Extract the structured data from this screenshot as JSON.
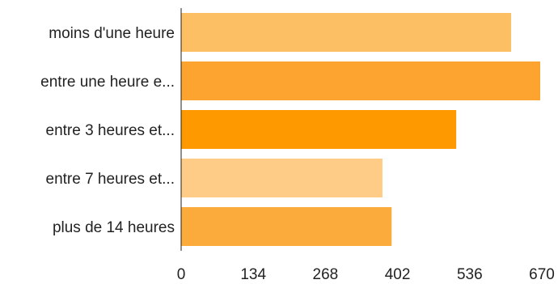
{
  "chart_data": {
    "type": "bar",
    "orientation": "horizontal",
    "categories": [
      "moins d'une heure",
      "entre une heure e...",
      "entre 3 heures et...",
      "entre 7 heures et...",
      "plus de 14 heures"
    ],
    "values": [
      613,
      667,
      511,
      374,
      391
    ],
    "bar_colors": [
      "#FDBF63",
      "#FCA42F",
      "#FF9900",
      "#FFCC88",
      "#FBAB3C"
    ],
    "xlim": [
      0,
      670
    ],
    "x_ticks": [
      "0",
      "134",
      "268",
      "402",
      "536",
      "670"
    ],
    "grid": false,
    "legend": "none"
  }
}
